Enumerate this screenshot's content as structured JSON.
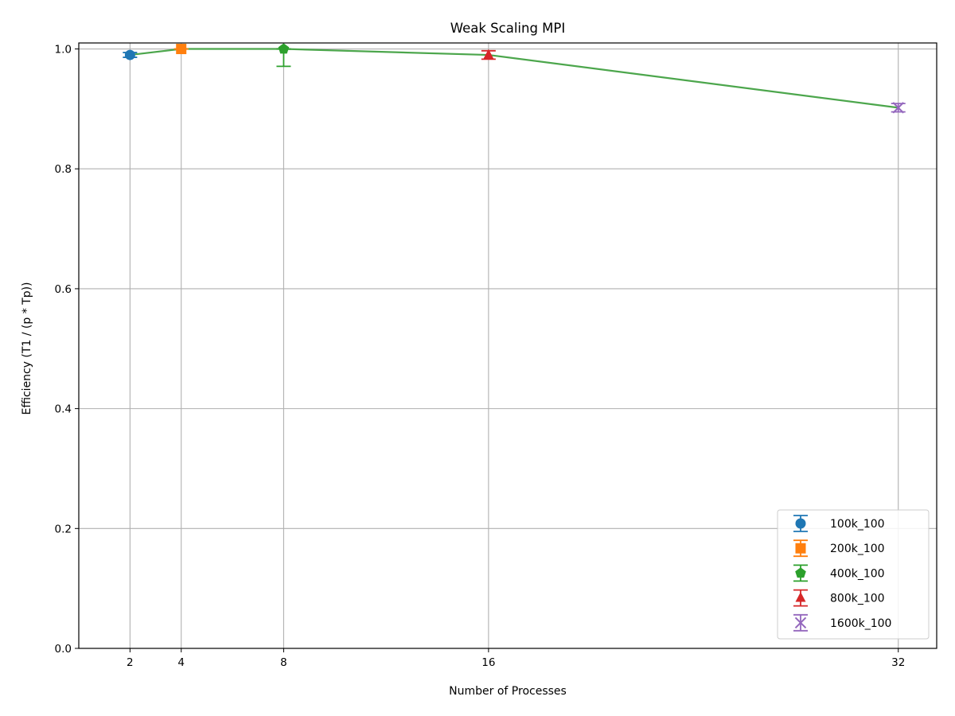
{
  "chart_data": {
    "type": "line",
    "title": "Weak Scaling MPI",
    "xlabel": "Number of Processes",
    "ylabel": "Efficiency (T1 / (p * Tp))",
    "x_ticks": [
      2,
      4,
      8,
      16,
      32
    ],
    "y_ticks": [
      "0.0",
      "0.2",
      "0.4",
      "0.6",
      "0.8",
      "1.0"
    ],
    "xlim": [
      0,
      33.5
    ],
    "ylim": [
      0,
      1.01
    ],
    "grid": true,
    "legend_position": "lower-right",
    "line": {
      "color": "#4ca64c",
      "x": [
        2,
        4,
        8,
        16,
        32
      ],
      "y": [
        0.99,
        1.0,
        1.0,
        0.99,
        0.902
      ]
    },
    "series": [
      {
        "name": "100k_100",
        "x": 2,
        "y": 0.99,
        "err_low": 0.004,
        "err_high": 0.004,
        "marker": "circle",
        "color": "#1f77b4"
      },
      {
        "name": "200k_100",
        "x": 4,
        "y": 1.0,
        "err_low": 0.0,
        "err_high": 0.0,
        "marker": "square",
        "color": "#ff7f0e"
      },
      {
        "name": "400k_100",
        "x": 8,
        "y": 1.0,
        "err_low": 0.029,
        "err_high": 0.0,
        "marker": "pentagon",
        "color": "#2ca02c"
      },
      {
        "name": "800k_100",
        "x": 16,
        "y": 0.99,
        "err_low": 0.007,
        "err_high": 0.007,
        "marker": "triangle",
        "color": "#d62728"
      },
      {
        "name": "1600k_100",
        "x": 32,
        "y": 0.902,
        "err_low": 0.007,
        "err_high": 0.007,
        "marker": "x",
        "color": "#9467bd"
      }
    ]
  }
}
